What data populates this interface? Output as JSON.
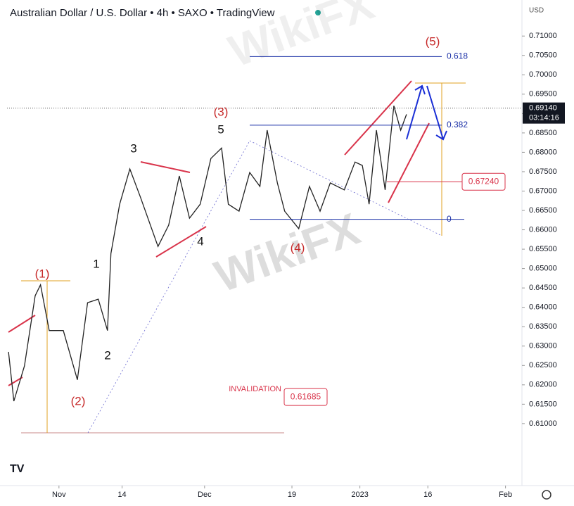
{
  "chart_data": {
    "type": "line",
    "title": "Australian Dollar / U.S. Dollar • 4h • SAXO • TradingView",
    "currency": "USD",
    "watermark": "WikiFX",
    "color": "#222222",
    "x": [
      -10.4,
      -9.3,
      -7.1,
      -4.9,
      -3.8,
      -2.0,
      0.9,
      3.8,
      5.9,
      8.1,
      10.0,
      10.7,
      12.5,
      14.6,
      16.8,
      20.4,
      22.6,
      24.8,
      26.9,
      29.1,
      31.3,
      33.5,
      34.9,
      37.1,
      39.3,
      41.4,
      42.9,
      45.0,
      46.5,
      49.4,
      51.6,
      53.8,
      55.9,
      58.8,
      61.0,
      62.5,
      63.9,
      65.4,
      67.2,
      69.0,
      70.4,
      71.6
    ],
    "values": [
      0.6285,
      0.6158,
      0.6249,
      0.643,
      0.6458,
      0.634,
      0.634,
      0.6213,
      0.6412,
      0.6421,
      0.634,
      0.6539,
      0.6666,
      0.6757,
      0.6684,
      0.6557,
      0.6612,
      0.6739,
      0.663,
      0.6666,
      0.6784,
      0.6811,
      0.6666,
      0.6648,
      0.6748,
      0.6712,
      0.6857,
      0.6721,
      0.6648,
      0.6603,
      0.6712,
      0.6648,
      0.6721,
      0.6703,
      0.6775,
      0.6766,
      0.6666,
      0.6857,
      0.6703,
      0.692,
      0.6857,
      0.6898
    ],
    "xlim": [
      -10.7,
      95.1
    ],
    "ylim": [
      0.594,
      0.7193
    ],
    "xticks": [
      {
        "value": 0,
        "label": "Nov"
      },
      {
        "value": 13,
        "label": "14"
      },
      {
        "value": 30,
        "label": "Dec"
      },
      {
        "value": 48,
        "label": "19"
      },
      {
        "value": 62,
        "label": "2023"
      },
      {
        "value": 76,
        "label": "16"
      },
      {
        "value": 92,
        "label": "Feb"
      }
    ],
    "yticks": [
      {
        "value": 0.61,
        "label": "0.61000"
      },
      {
        "value": 0.615,
        "label": "0.61500"
      },
      {
        "value": 0.62,
        "label": "0.62000"
      },
      {
        "value": 0.625,
        "label": "0.62500"
      },
      {
        "value": 0.63,
        "label": "0.63000"
      },
      {
        "value": 0.635,
        "label": "0.63500"
      },
      {
        "value": 0.64,
        "label": "0.64000"
      },
      {
        "value": 0.645,
        "label": "0.64500"
      },
      {
        "value": 0.65,
        "label": "0.65000"
      },
      {
        "value": 0.655,
        "label": "0.65500"
      },
      {
        "value": 0.66,
        "label": "0.66000"
      },
      {
        "value": 0.665,
        "label": "0.66500"
      },
      {
        "value": 0.67,
        "label": "0.67000"
      },
      {
        "value": 0.675,
        "label": "0.67500"
      },
      {
        "value": 0.68,
        "label": "0.68000"
      },
      {
        "value": 0.685,
        "label": "0.68500"
      },
      {
        "value": 0.69,
        "label": "0.69000"
      },
      {
        "value": 0.695,
        "label": "0.69500"
      },
      {
        "value": 0.7,
        "label": "0.70000"
      },
      {
        "value": 0.705,
        "label": "0.70500"
      },
      {
        "value": 0.71,
        "label": "0.71000"
      }
    ],
    "last_price": {
      "value": 0.6914,
      "label": "0.69140",
      "countdown": "03:14:16"
    },
    "fib_levels": [
      {
        "price": 0.7047,
        "text": "0.618",
        "color": "#1a2fa6"
      },
      {
        "price": 0.687,
        "text": "0.382",
        "color": "#1a2fa6"
      },
      {
        "price": 0.6627,
        "text": "0",
        "color": "#1a2fa6"
      }
    ],
    "price_boxes": [
      {
        "value": 0.6724,
        "label": "0.67240"
      },
      {
        "value": 0.61685,
        "label": "0.61685",
        "text": "INVALIDATION"
      }
    ],
    "wave_labels": [
      {
        "text": "(1)",
        "color": "#c62828"
      },
      {
        "text": "(2)",
        "color": "#c62828"
      },
      {
        "text": "1",
        "color": "#111111"
      },
      {
        "text": "2",
        "color": "#111111"
      },
      {
        "text": "3",
        "color": "#111111"
      },
      {
        "text": "4",
        "color": "#111111"
      },
      {
        "text": "(3)",
        "color": "#c62828"
      },
      {
        "text": "5",
        "color": "#111111"
      },
      {
        "text": "(4)",
        "color": "#c62828"
      },
      {
        "text": "(5)",
        "color": "#c62828"
      }
    ]
  }
}
